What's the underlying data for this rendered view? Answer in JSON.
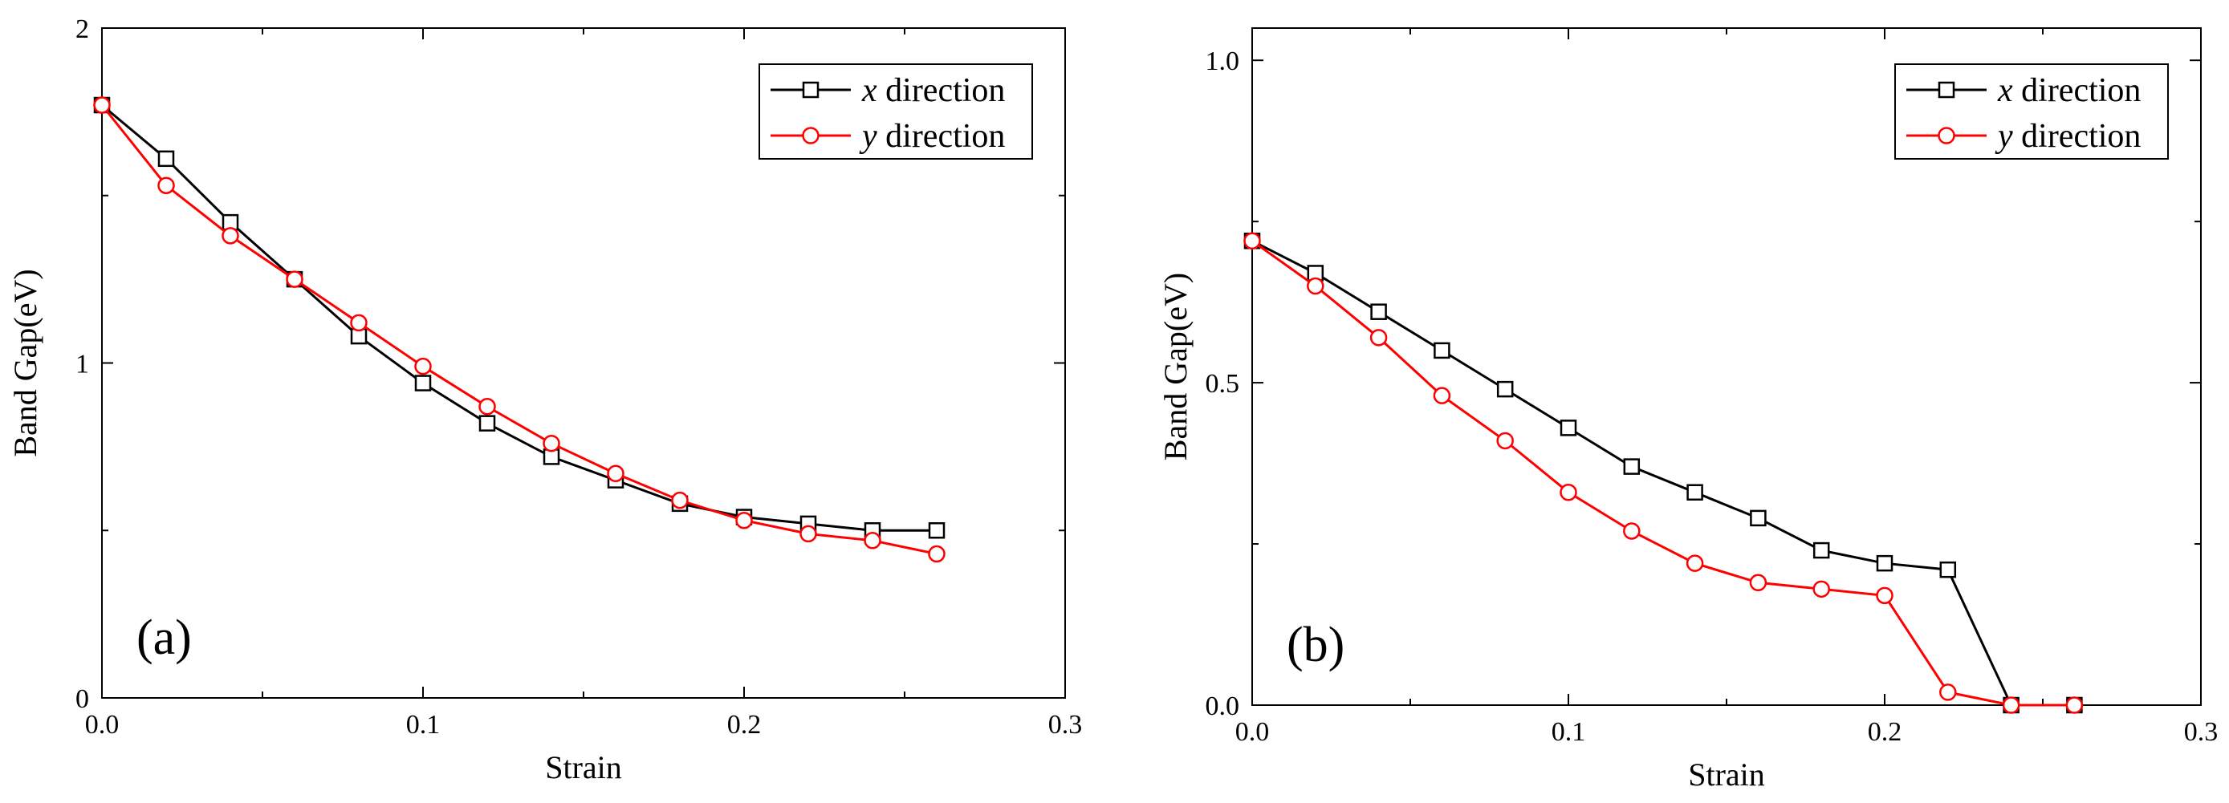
{
  "chart_data": [
    {
      "type": "line",
      "panel_label": "(a)",
      "xlabel": "Strain",
      "ylabel": "Band Gap(eV)",
      "xlim": [
        0,
        0.3
      ],
      "ylim": [
        0,
        2
      ],
      "x_major_ticks": [
        0,
        0.1,
        0.2,
        0.3
      ],
      "x_tick_labels": [
        "0.0",
        "0.1",
        "0.2",
        "0.3"
      ],
      "y_major_ticks": [
        0,
        1,
        2
      ],
      "y_tick_labels": [
        "0",
        "1",
        "2"
      ],
      "y_minor_step": 0.5,
      "legend_position": "top-right",
      "series": [
        {
          "name_prefix": "x",
          "name_suffix": "direction",
          "color": "#000000",
          "marker": "square",
          "x": [
            0,
            0.02,
            0.04,
            0.06,
            0.08,
            0.1,
            0.12,
            0.14,
            0.16,
            0.18,
            0.2,
            0.22,
            0.24,
            0.26
          ],
          "values": [
            1.77,
            1.61,
            1.42,
            1.25,
            1.08,
            0.94,
            0.82,
            0.72,
            0.65,
            0.58,
            0.54,
            0.52,
            0.5,
            0.5
          ]
        },
        {
          "name_prefix": "y",
          "name_suffix": "direction",
          "color": "#ff0000",
          "marker": "circle",
          "x": [
            0,
            0.02,
            0.04,
            0.06,
            0.08,
            0.1,
            0.12,
            0.14,
            0.16,
            0.18,
            0.2,
            0.22,
            0.24,
            0.26
          ],
          "values": [
            1.77,
            1.53,
            1.38,
            1.25,
            1.12,
            0.99,
            0.87,
            0.76,
            0.67,
            0.59,
            0.53,
            0.49,
            0.47,
            0.43
          ]
        }
      ]
    },
    {
      "type": "line",
      "panel_label": "(b)",
      "xlabel": "Strain",
      "ylabel": "Band Gap(eV)",
      "xlim": [
        0,
        0.3
      ],
      "ylim": [
        0,
        1.05
      ],
      "x_major_ticks": [
        0,
        0.1,
        0.2,
        0.3
      ],
      "x_tick_labels": [
        "0.0",
        "0.1",
        "0.2",
        "0.3"
      ],
      "y_major_ticks": [
        0,
        0.5,
        1.0
      ],
      "y_tick_labels": [
        "0.0",
        "0.5",
        "1.0"
      ],
      "y_minor_step": 0.25,
      "legend_position": "top-right",
      "series": [
        {
          "name_prefix": "x",
          "name_suffix": "direction",
          "color": "#000000",
          "marker": "square",
          "x": [
            0,
            0.02,
            0.04,
            0.06,
            0.08,
            0.1,
            0.12,
            0.14,
            0.16,
            0.18,
            0.2,
            0.22,
            0.24,
            0.26
          ],
          "values": [
            0.72,
            0.67,
            0.61,
            0.55,
            0.49,
            0.43,
            0.37,
            0.33,
            0.29,
            0.24,
            0.22,
            0.21,
            0.0,
            0.0
          ]
        },
        {
          "name_prefix": "y",
          "name_suffix": "direction",
          "color": "#ff0000",
          "marker": "circle",
          "x": [
            0,
            0.02,
            0.04,
            0.06,
            0.08,
            0.1,
            0.12,
            0.14,
            0.16,
            0.18,
            0.2,
            0.22,
            0.24,
            0.26
          ],
          "values": [
            0.72,
            0.65,
            0.57,
            0.48,
            0.41,
            0.33,
            0.27,
            0.22,
            0.19,
            0.18,
            0.17,
            0.02,
            0.0,
            0.0
          ]
        }
      ]
    }
  ]
}
